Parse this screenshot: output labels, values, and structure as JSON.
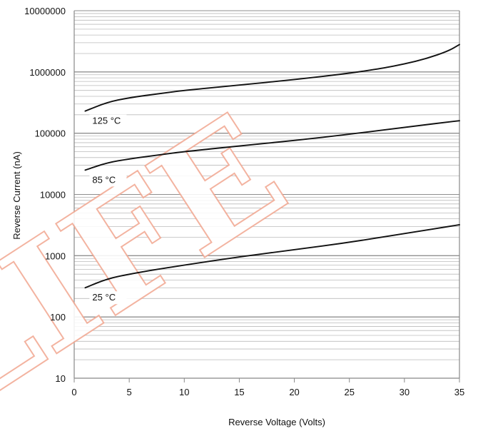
{
  "chart_data": {
    "type": "line",
    "title": "",
    "xlabel": "Reverse Voltage (Volts)",
    "ylabel": "Reverse Current (nA)",
    "xlim": [
      0,
      35
    ],
    "ylim": [
      10,
      10000000
    ],
    "y_scale": "log",
    "grid": "horizontal",
    "x_ticks": [
      0,
      5,
      10,
      15,
      20,
      25,
      30,
      35
    ],
    "y_ticks": [
      {
        "value": 10,
        "label": "10"
      },
      {
        "value": 100,
        "label": "100"
      },
      {
        "value": 1000,
        "label": "1000"
      },
      {
        "value": 10000,
        "label": "10000"
      },
      {
        "value": 100000,
        "label": "100000"
      },
      {
        "value": 1000000,
        "label": "1000000"
      },
      {
        "value": 10000000,
        "label": "10000000"
      }
    ],
    "series": [
      {
        "name": "125 °C",
        "x": [
          1,
          3,
          5,
          8,
          10,
          15,
          20,
          25,
          28,
          30,
          32,
          34,
          35
        ],
        "y": [
          230000,
          320000,
          380000,
          450000,
          500000,
          610000,
          750000,
          950000,
          1150000,
          1350000,
          1650000,
          2200000,
          2800000
        ]
      },
      {
        "name": "85 °C",
        "x": [
          1,
          3,
          5,
          8,
          10,
          15,
          20,
          25,
          30,
          35
        ],
        "y": [
          25000,
          33000,
          38000,
          45000,
          50000,
          62000,
          76000,
          96000,
          125000,
          160000
        ]
      },
      {
        "name": "25 °C",
        "x": [
          1,
          3,
          5,
          8,
          10,
          15,
          20,
          25,
          30,
          35
        ],
        "y": [
          300,
          420,
          500,
          620,
          700,
          960,
          1250,
          1650,
          2300,
          3200
        ]
      }
    ],
    "colors": {
      "line": "#111111",
      "grid": "#bbbbbb",
      "axis": "#888888",
      "watermark": "#f2a993"
    }
  },
  "watermark": {
    "text": "LIFE"
  }
}
